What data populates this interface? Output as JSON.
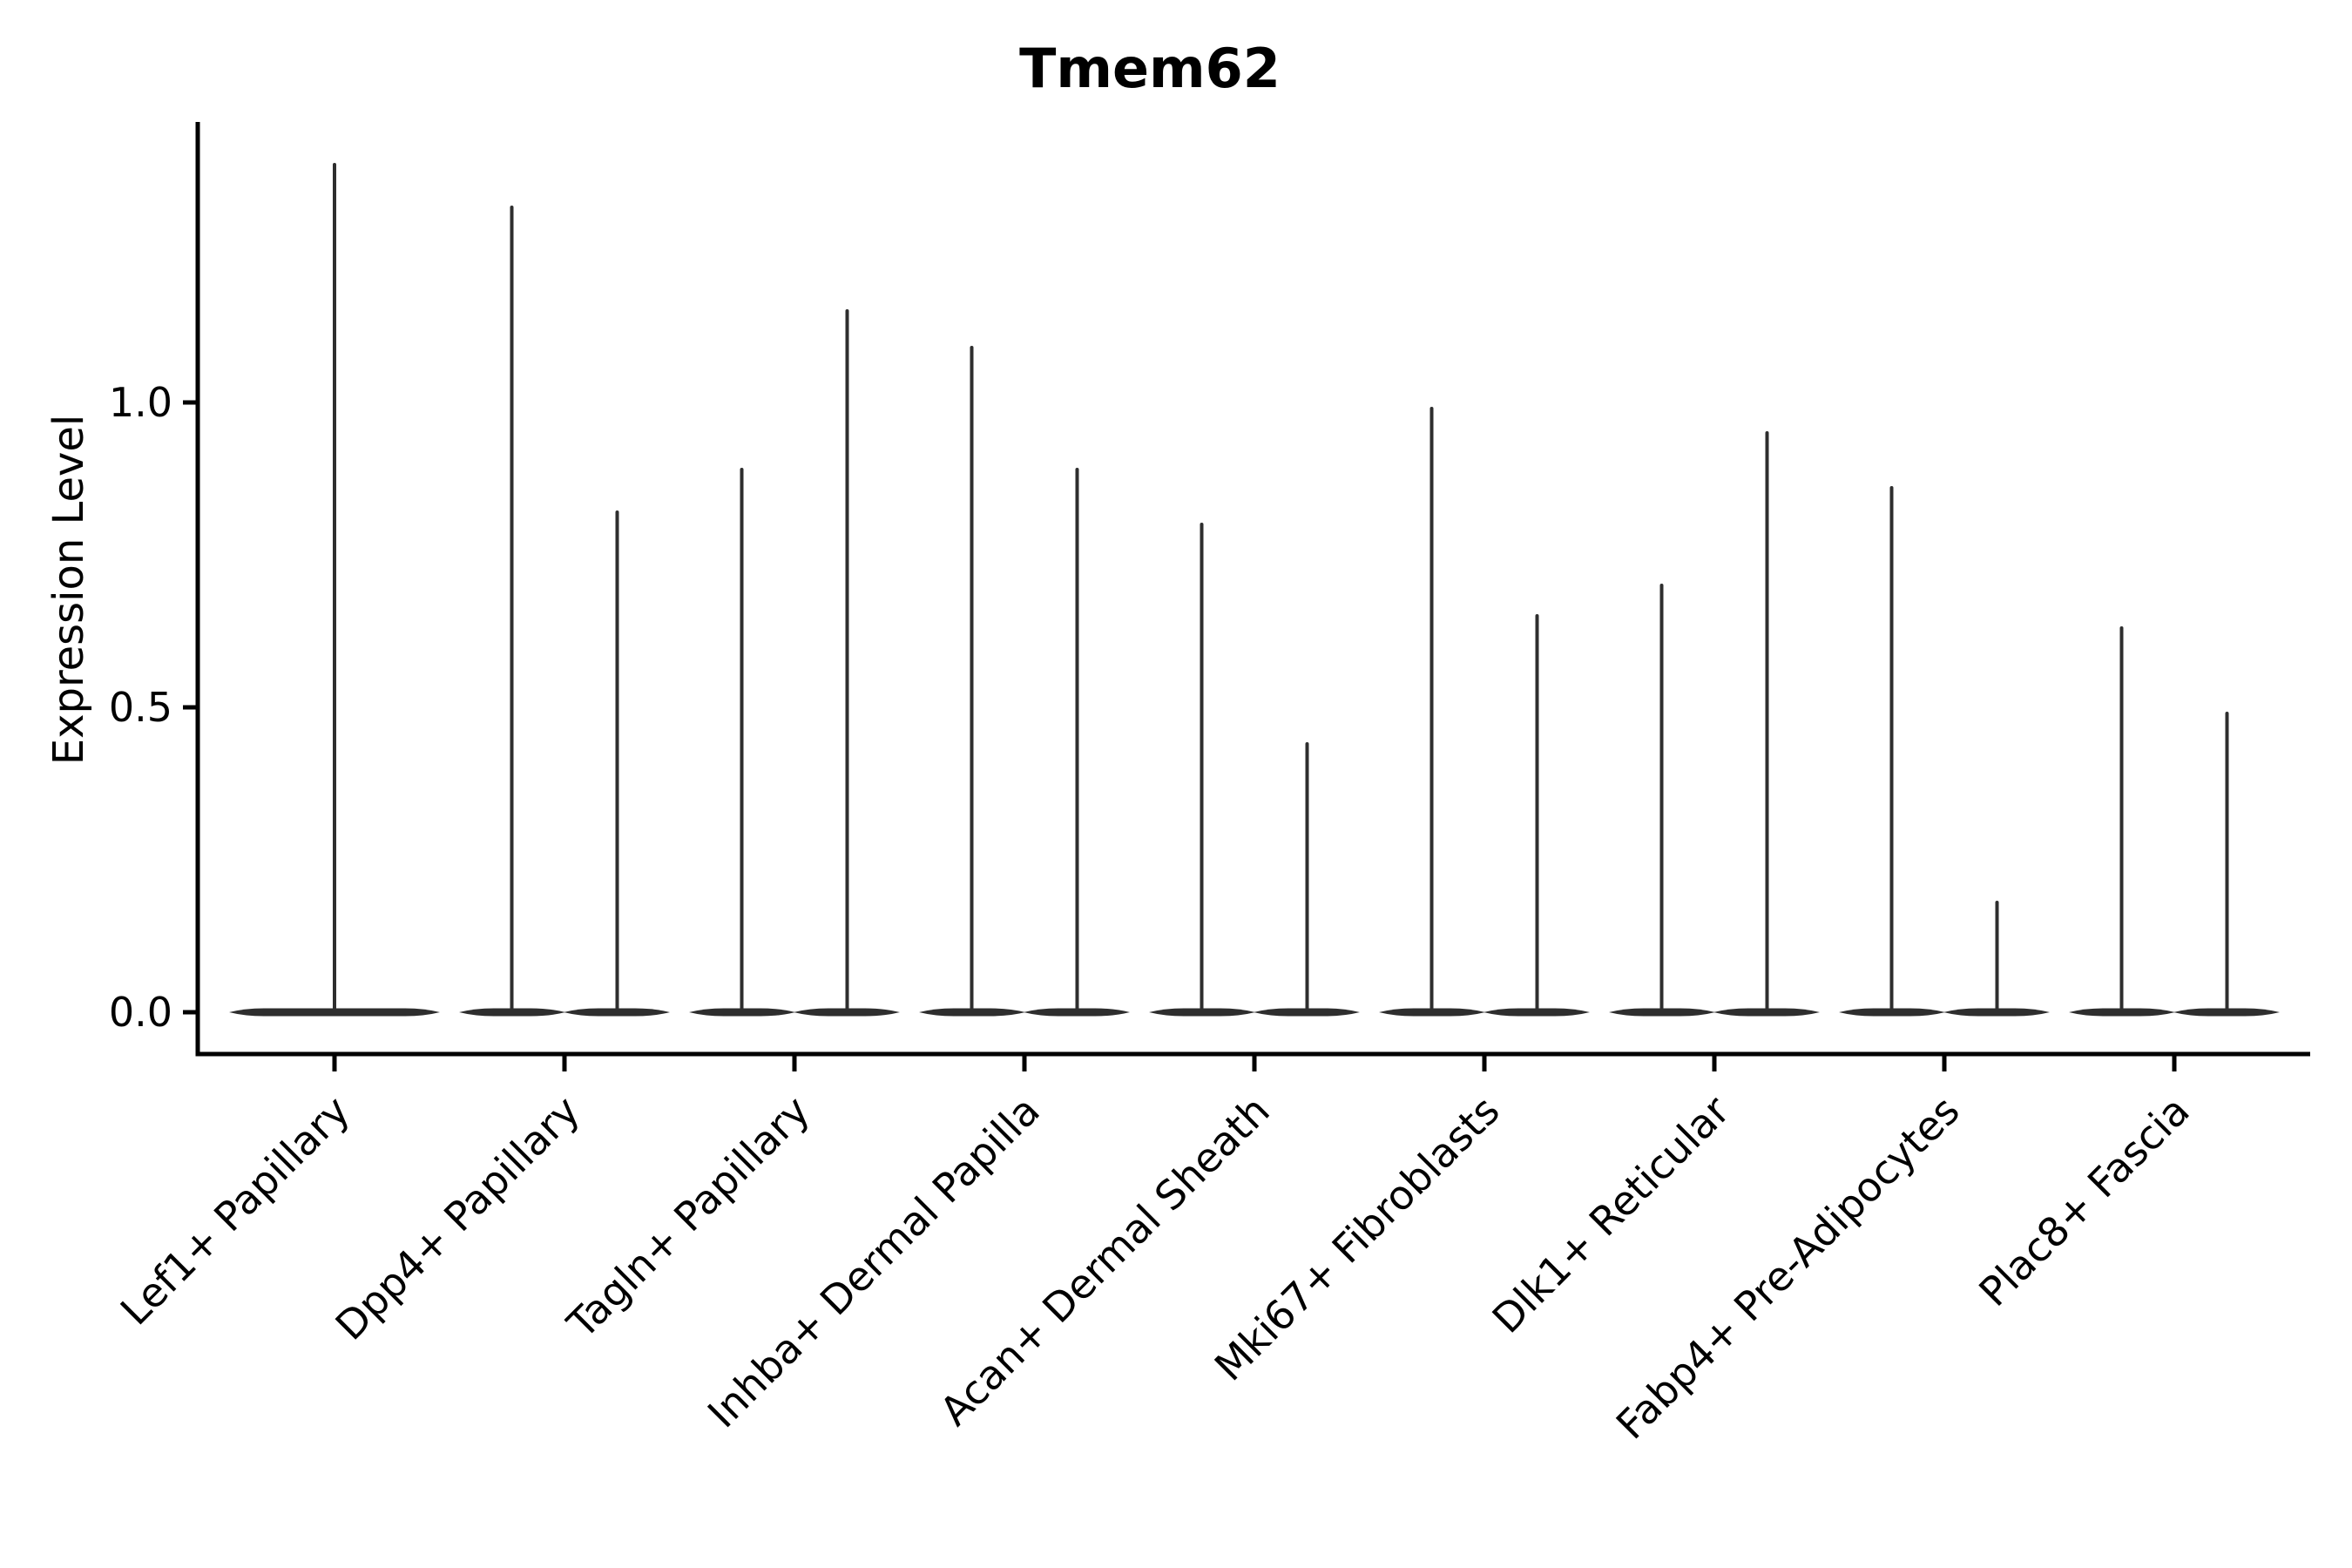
{
  "chart_data": {
    "type": "violin",
    "title": "Tmem62",
    "ylabel": "Expression Level",
    "xlabel": "",
    "grid": false,
    "legend": null,
    "background": "#ffffff",
    "colors": {
      "violin": "#2e2e2e",
      "axis": "#000000",
      "text": "#000000"
    },
    "yticks": [
      {
        "label": "0.0",
        "value": 0.0
      },
      {
        "label": "0.5",
        "value": 0.5
      },
      {
        "label": "1.0",
        "value": 1.0
      }
    ],
    "ylim": [
      -0.07,
      1.53
    ],
    "categories": [
      "Lef1+ Papillary",
      "Dpp4+ Papillary",
      "Tagln+ Papillary",
      "Inhba+ Dermal Papilla",
      "Acan+ Dermal Sheath",
      "Mki67+ Fibroblasts",
      "Dlk1+ Reticular",
      "Fabp4+ Pre-Adipocytes",
      "Plac8+ Fascia"
    ],
    "violins": [
      {
        "category": "Lef1+ Papillary",
        "groups": [
          {
            "slot": "full",
            "max_expression": 1.39,
            "bulk_expression": 0.0
          }
        ]
      },
      {
        "category": "Dpp4+ Papillary",
        "groups": [
          {
            "slot": "left",
            "max_expression": 1.32,
            "bulk_expression": 0.0
          },
          {
            "slot": "right",
            "max_expression": 0.82,
            "bulk_expression": 0.0
          }
        ]
      },
      {
        "category": "Tagln+ Papillary",
        "groups": [
          {
            "slot": "left",
            "max_expression": 0.89,
            "bulk_expression": 0.0
          },
          {
            "slot": "right",
            "max_expression": 1.15,
            "bulk_expression": 0.0
          }
        ]
      },
      {
        "category": "Inhba+ Dermal Papilla",
        "groups": [
          {
            "slot": "left",
            "max_expression": 1.09,
            "bulk_expression": 0.0
          },
          {
            "slot": "right",
            "max_expression": 0.89,
            "bulk_expression": 0.0
          }
        ]
      },
      {
        "category": "Acan+ Dermal Sheath",
        "groups": [
          {
            "slot": "left",
            "max_expression": 0.8,
            "bulk_expression": 0.0
          },
          {
            "slot": "right",
            "max_expression": 0.44,
            "bulk_expression": 0.0
          }
        ]
      },
      {
        "category": "Mki67+ Fibroblasts",
        "groups": [
          {
            "slot": "left",
            "max_expression": 0.99,
            "bulk_expression": 0.0
          },
          {
            "slot": "right",
            "max_expression": 0.65,
            "bulk_expression": 0.0
          }
        ]
      },
      {
        "category": "Dlk1+ Reticular",
        "groups": [
          {
            "slot": "left",
            "max_expression": 0.7,
            "bulk_expression": 0.0
          },
          {
            "slot": "right",
            "max_expression": 0.95,
            "bulk_expression": 0.0
          }
        ]
      },
      {
        "category": "Fabp4+ Pre-Adipocytes",
        "groups": [
          {
            "slot": "left",
            "max_expression": 0.86,
            "bulk_expression": 0.0
          },
          {
            "slot": "right",
            "max_expression": 0.18,
            "bulk_expression": 0.0
          }
        ]
      },
      {
        "category": "Plac8+ Fascia",
        "groups": [
          {
            "slot": "left",
            "max_expression": 0.63,
            "bulk_expression": 0.0
          },
          {
            "slot": "right",
            "max_expression": 0.49,
            "bulk_expression": 0.0
          }
        ]
      }
    ]
  }
}
